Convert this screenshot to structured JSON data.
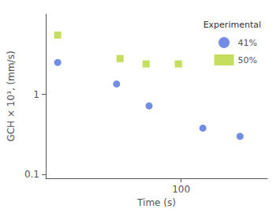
{
  "chart_data": {
    "type": "scatter",
    "xlabel": "Time (s)",
    "ylabel": "GCH × 10³, (mm/s)",
    "legend_title": "Experimental",
    "series": [
      {
        "name": "41%",
        "marker": "circle",
        "x": [
          10,
          30,
          55,
          150,
          300
        ],
        "values": [
          2.5,
          1.35,
          0.72,
          0.38,
          0.3
        ]
      },
      {
        "name": "50%",
        "marker": "square",
        "x": [
          10,
          32,
          52,
          95
        ],
        "values": [
          5.5,
          2.8,
          2.4,
          2.4
        ]
      }
    ],
    "log": true,
    "xlim": [
      8,
      500
    ],
    "xticks": [
      100
    ],
    "ylim": [
      0.09,
      10
    ],
    "yticks": [
      0.1,
      1
    ],
    "grid": false,
    "legend": "upper right"
  }
}
